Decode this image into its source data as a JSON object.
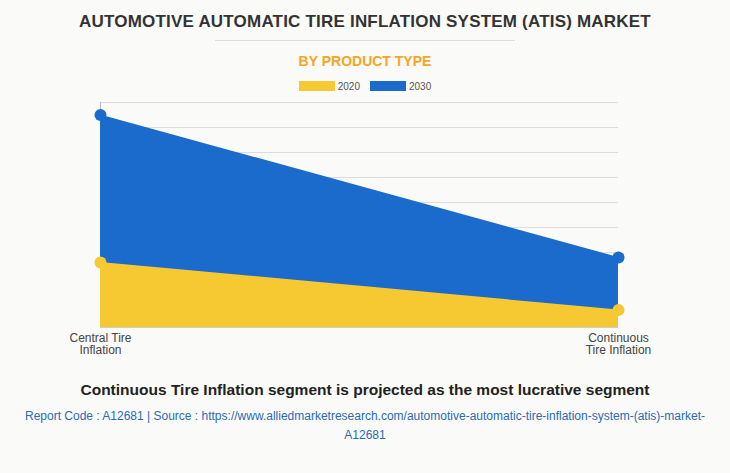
{
  "chart_data": {
    "type": "area",
    "title": "AUTOMOTIVE AUTOMATIC TIRE INFLATION SYSTEM (ATIS) MARKET",
    "subtitle": "BY PRODUCT TYPE",
    "caption": "Continuous Tire Inflation segment is projected as the most lucrative segment",
    "source": "Report Code : A12681  |  Source : https://www.alliedmarketresearch.com/automotive-automatic-tire-inflation-system-(atis)-market-A12681",
    "categories": [
      "Central Tire Inflation",
      "Continuous Tire Inflation"
    ],
    "series": [
      {
        "name": "2020",
        "color": "#f6c832",
        "values": [
          2.6,
          0.7
        ]
      },
      {
        "name": "2030",
        "color": "#1a6bcc",
        "values": [
          8.5,
          2.8
        ]
      }
    ],
    "ylim": [
      0,
      9
    ],
    "yticks": [
      0,
      1,
      2,
      3,
      4,
      5,
      6,
      7,
      8,
      9
    ],
    "grid": true,
    "stacked": false,
    "tick_labels": "x",
    "marker": "circle",
    "legend": "top"
  }
}
